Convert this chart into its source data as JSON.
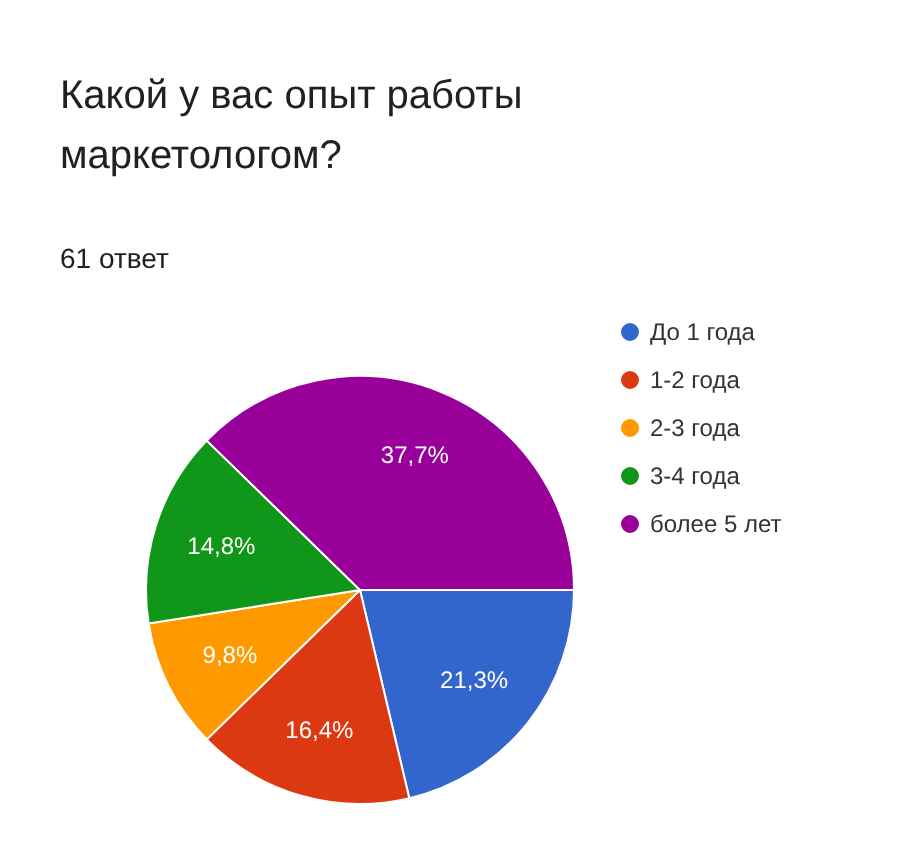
{
  "chart_data": {
    "type": "pie",
    "title": "Какой у вас опыт работы маркетологом?",
    "subtitle": "61 ответ",
    "categories": [
      "До 1 года",
      "1-2 года",
      "2-3 года",
      "3-4 года",
      "более 5 лет"
    ],
    "values": [
      21.3,
      16.4,
      9.8,
      14.8,
      37.7
    ],
    "value_labels": [
      "21,3%",
      "16,4%",
      "9,8%",
      "14,8%",
      "37,7%"
    ],
    "colors": [
      "#3366cc",
      "#dc3912",
      "#ff9900",
      "#109618",
      "#990099"
    ],
    "legend": "right"
  }
}
